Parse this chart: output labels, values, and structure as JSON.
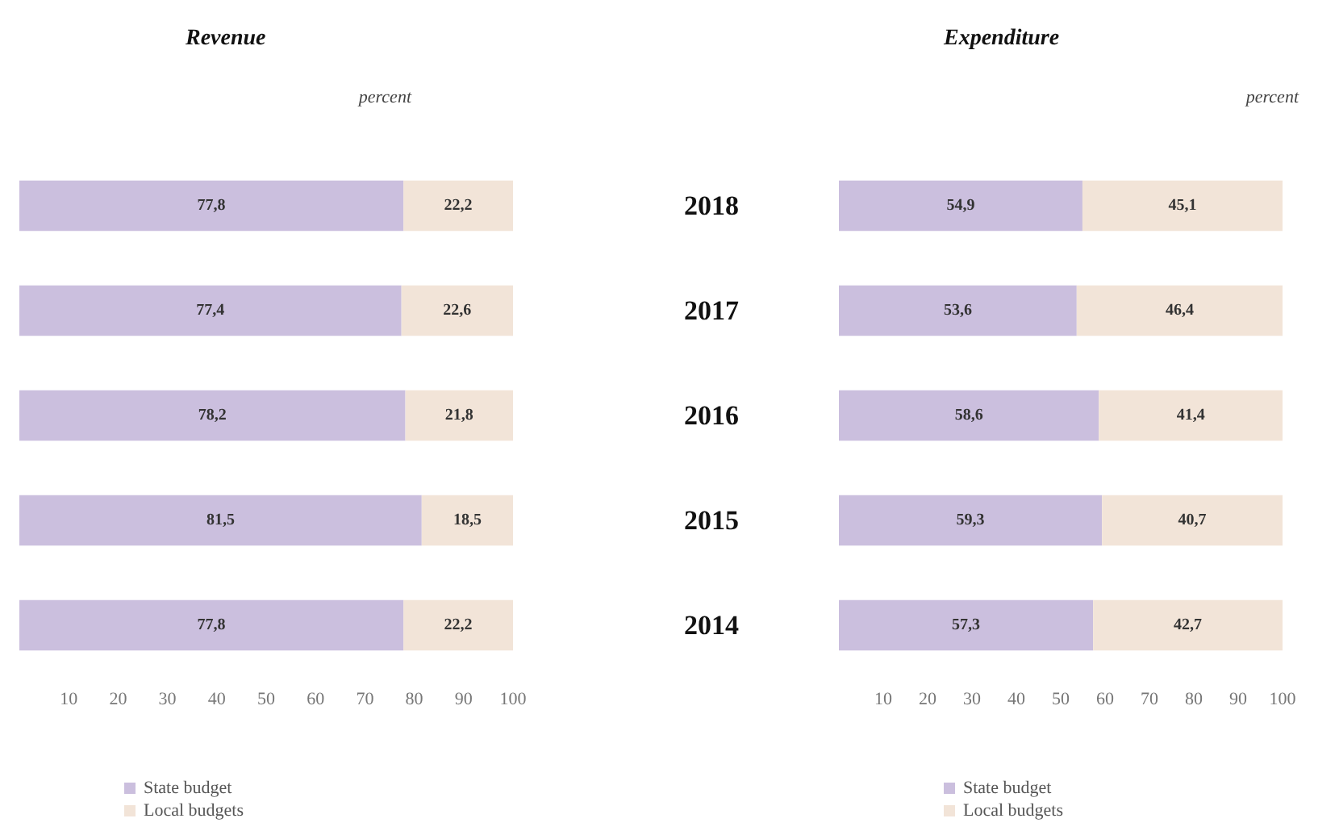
{
  "chart_data": [
    {
      "type": "bar",
      "orientation": "horizontal",
      "stacked": true,
      "title": "Revenue",
      "subtitle": "percent",
      "categories": [
        "2018",
        "2017",
        "2016",
        "2015",
        "2014"
      ],
      "xlim": [
        0,
        100
      ],
      "xticks": [
        10,
        20,
        30,
        40,
        50,
        60,
        70,
        80,
        90,
        100
      ],
      "tick_labels": "x",
      "grid": false,
      "legend": "bottom",
      "series": [
        {
          "name": "State budget",
          "color": "#cbbfde",
          "values": [
            77.8,
            77.4,
            78.2,
            81.5,
            77.8
          ],
          "value_labels": [
            "77,8",
            "77,4",
            "78,2",
            "81,5",
            "77,8"
          ]
        },
        {
          "name": "Local budgets",
          "color": "#f2e4d8",
          "values": [
            22.2,
            22.6,
            21.8,
            18.5,
            22.2
          ],
          "value_labels": [
            "22,2",
            "22,6",
            "21,8",
            "18,5",
            "22,2"
          ]
        }
      ]
    },
    {
      "type": "bar",
      "orientation": "horizontal",
      "stacked": true,
      "title": "Expenditure",
      "subtitle": "percent",
      "categories": [
        "2018",
        "2017",
        "2016",
        "2015",
        "2014"
      ],
      "xlim": [
        0,
        100
      ],
      "xticks": [
        10,
        20,
        30,
        40,
        50,
        60,
        70,
        80,
        90,
        100
      ],
      "grid": false,
      "legend": "bottom",
      "series": [
        {
          "name": "State budget",
          "color": "#cbbfde",
          "values": [
            54.9,
            53.6,
            58.6,
            59.3,
            57.3
          ],
          "value_labels": [
            "54,9",
            "53,6",
            "58,6",
            "59,3",
            "57,3"
          ]
        },
        {
          "name": "Local budgets",
          "color": "#f2e4d8",
          "values": [
            45.1,
            46.4,
            41.4,
            40.7,
            42.7
          ],
          "value_labels": [
            "45,1",
            "46,4",
            "41,4",
            "40,7",
            "42,7"
          ]
        }
      ]
    }
  ]
}
